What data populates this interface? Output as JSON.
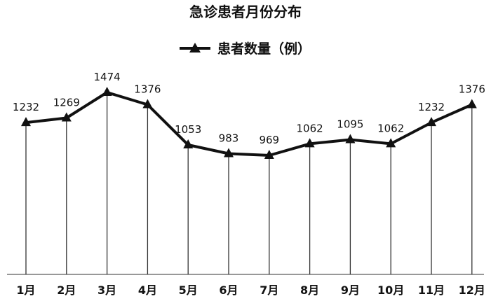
{
  "chart_data": {
    "type": "line",
    "title": "急诊患者月份分布",
    "categories": [
      "1月",
      "2月",
      "3月",
      "4月",
      "5月",
      "6月",
      "7月",
      "8月",
      "9月",
      "10月",
      "11月",
      "12月"
    ],
    "series": [
      {
        "name": "患者数量（例）",
        "values": [
          1232,
          1269,
          1474,
          1376,
          1053,
          983,
          969,
          1062,
          1095,
          1062,
          1232,
          1376
        ]
      }
    ],
    "xlabel": "",
    "ylabel": "",
    "ylim": [
      0,
      1600
    ],
    "grid": false,
    "drop_lines": true,
    "marker": "triangle",
    "legend_position": "top",
    "colors": {
      "line": "#111111",
      "drop_line": "#333333",
      "axis": "#777777"
    }
  }
}
